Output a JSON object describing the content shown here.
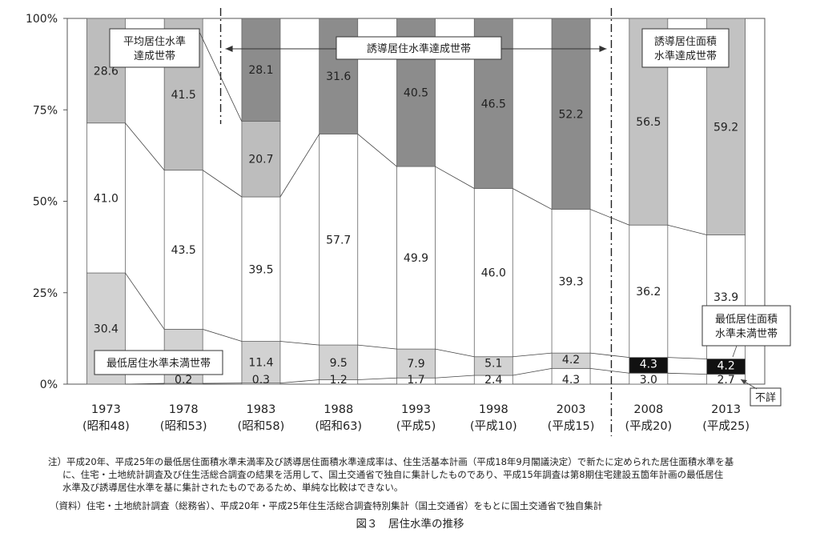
{
  "chart_data": {
    "type": "bar",
    "stacked": true,
    "normalized": true,
    "ylim": [
      0,
      100
    ],
    "yticks": [
      "0%",
      "25%",
      "50%",
      "75%",
      "100%"
    ],
    "categories": [
      {
        "year": "1973",
        "era": "(昭和48)"
      },
      {
        "year": "1978",
        "era": "(昭和53)"
      },
      {
        "year": "1983",
        "era": "(昭和58)"
      },
      {
        "year": "1988",
        "era": "(昭和63)"
      },
      {
        "year": "1993",
        "era": "(平成5)"
      },
      {
        "year": "1998",
        "era": "(平成10)"
      },
      {
        "year": "2003",
        "era": "(平成15)"
      },
      {
        "year": "2008",
        "era": "(平成20)"
      },
      {
        "year": "2013",
        "era": "(平成25)"
      }
    ],
    "bars": [
      {
        "segments": [
          {
            "kind": "unknown",
            "value": 0,
            "label": ""
          },
          {
            "kind": "minimum_below",
            "value": 30.4,
            "label": "30.4"
          },
          {
            "kind": "middle",
            "value": 41.0,
            "label": "41.0"
          },
          {
            "kind": "top_average",
            "value": 28.6,
            "label": "28.6"
          }
        ]
      },
      {
        "segments": [
          {
            "kind": "unknown",
            "value": 0.2,
            "label": "0.2"
          },
          {
            "kind": "minimum_below",
            "value": 14.8,
            "label": "14.8"
          },
          {
            "kind": "middle",
            "value": 43.5,
            "label": "43.5"
          },
          {
            "kind": "top_average",
            "value": 41.5,
            "label": "41.5"
          }
        ]
      },
      {
        "segments": [
          {
            "kind": "unknown",
            "value": 0.3,
            "label": "0.3"
          },
          {
            "kind": "minimum_below",
            "value": 11.4,
            "label": "11.4"
          },
          {
            "kind": "middle",
            "value": 39.5,
            "label": "39.5"
          },
          {
            "kind": "top_average",
            "value": 20.7,
            "label": "20.7"
          },
          {
            "kind": "top_guidance",
            "value": 28.1,
            "label": "28.1"
          }
        ]
      },
      {
        "segments": [
          {
            "kind": "unknown",
            "value": 1.2,
            "label": "1.2"
          },
          {
            "kind": "minimum_below",
            "value": 9.5,
            "label": "9.5"
          },
          {
            "kind": "middle",
            "value": 57.7,
            "label": "57.7"
          },
          {
            "kind": "top_guidance",
            "value": 31.6,
            "label": "31.6"
          }
        ]
      },
      {
        "segments": [
          {
            "kind": "unknown",
            "value": 1.7,
            "label": "1.7"
          },
          {
            "kind": "minimum_below",
            "value": 7.9,
            "label": "7.9"
          },
          {
            "kind": "middle",
            "value": 49.9,
            "label": "49.9"
          },
          {
            "kind": "top_guidance",
            "value": 40.5,
            "label": "40.5"
          }
        ]
      },
      {
        "segments": [
          {
            "kind": "unknown",
            "value": 2.4,
            "label": "2.4"
          },
          {
            "kind": "minimum_below",
            "value": 5.1,
            "label": "5.1"
          },
          {
            "kind": "middle",
            "value": 46.0,
            "label": "46.0"
          },
          {
            "kind": "top_guidance",
            "value": 46.5,
            "label": "46.5"
          }
        ]
      },
      {
        "segments": [
          {
            "kind": "unknown",
            "value": 4.3,
            "label": "4.3"
          },
          {
            "kind": "minimum_below",
            "value": 4.2,
            "label": "4.2"
          },
          {
            "kind": "middle",
            "value": 39.3,
            "label": "39.3"
          },
          {
            "kind": "top_guidance",
            "value": 52.2,
            "label": "52.2"
          }
        ]
      },
      {
        "segments": [
          {
            "kind": "unknown",
            "value": 3.0,
            "label": "3.0"
          },
          {
            "kind": "minimum_area_below",
            "value": 4.3,
            "label": "4.3"
          },
          {
            "kind": "middle",
            "value": 36.2,
            "label": "36.2"
          },
          {
            "kind": "top_area",
            "value": 56.5,
            "label": "56.5"
          }
        ]
      },
      {
        "segments": [
          {
            "kind": "unknown",
            "value": 2.7,
            "label": "2.7"
          },
          {
            "kind": "minimum_area_below",
            "value": 4.2,
            "label": "4.2"
          },
          {
            "kind": "middle",
            "value": 33.9,
            "label": "33.9"
          },
          {
            "kind": "top_area",
            "value": 59.2,
            "label": "59.2"
          }
        ]
      }
    ],
    "annotations": {
      "average_box": [
        "平均居住水準",
        "達成世帯"
      ],
      "guidance_box": "誘導居住水準達成世帯",
      "area_box": [
        "誘導居住面積",
        "水準達成世帯"
      ],
      "minimum_box": "最低居住水準未満世帯",
      "minimum_area_box": [
        "最低居住面積",
        "水準未満世帯"
      ],
      "unknown_box": "不詳"
    },
    "colors": {
      "unknown": "#ffffff",
      "minimum_below": "#d2d2d2",
      "minimum_area_below": "#111111",
      "middle": "#ffffff",
      "top_average": "#bdbdbd",
      "top_guidance": "#8c8c8c",
      "top_area": "#c2c2c2"
    }
  },
  "notes": {
    "line1": "注）平成20年、平成25年の最低居住面積水準未満率及び誘導居住面積水準達成率は、住生活基本計画（平成18年9月閣議決定）で新たに定められた居住面積水準を基",
    "line2": "に、住宅・土地統計調査及び住生活総合調査の結果を活用して、国土交通省で独自に集計したものであり、平成15年調査は第8期住宅建設五箇年計画の最低居住",
    "line3": "水準及び誘導居住水準を基に集計されたものであるため、単純な比較はできない。",
    "source": "（資料）住宅・土地統計調査（総務省）、平成20年・平成25年住生活総合調査特別集計（国土交通省）をもとに国土交通省で独自集計",
    "caption": "図３　居住水準の推移"
  }
}
